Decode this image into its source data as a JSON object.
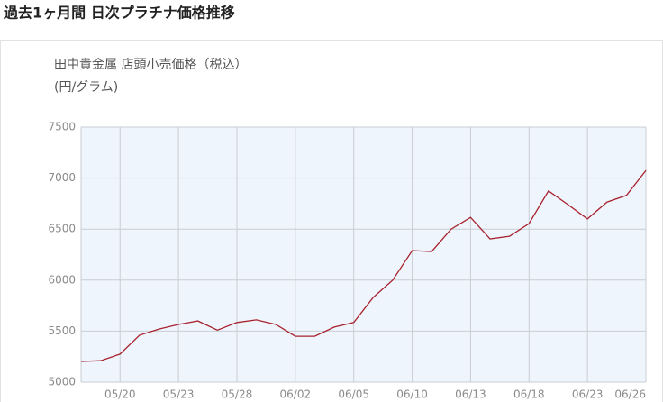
{
  "chart_data": {
    "type": "line",
    "title": "過去1ヶ月間 日次プラチナ価格推移",
    "subtitle": "田中貴金属 店頭小売価格（税込）",
    "y_label": "(円/グラム)",
    "categories": [
      null,
      null,
      "05/20",
      null,
      null,
      "05/23",
      null,
      null,
      "05/28",
      null,
      null,
      "06/02",
      null,
      null,
      "06/05",
      null,
      null,
      "06/10",
      null,
      null,
      "06/13",
      null,
      null,
      "06/18",
      null,
      null,
      "06/23",
      null,
      null,
      "06/26"
    ],
    "series": [
      {
        "name": "プラチナ",
        "color": "#a8222e",
        "values": [
          5203,
          5210,
          5275,
          5460,
          5520,
          5565,
          5600,
          5510,
          5585,
          5610,
          5565,
          5450,
          5450,
          5540,
          5585,
          5830,
          6000,
          6290,
          6280,
          6500,
          6615,
          6405,
          6430,
          6555,
          6875,
          6740,
          6600,
          6765,
          6830,
          7075
        ]
      }
    ],
    "ylim": [
      5000,
      7500
    ],
    "yticks": [
      5000,
      5500,
      6000,
      6500,
      7000,
      7500
    ],
    "grid": true
  }
}
